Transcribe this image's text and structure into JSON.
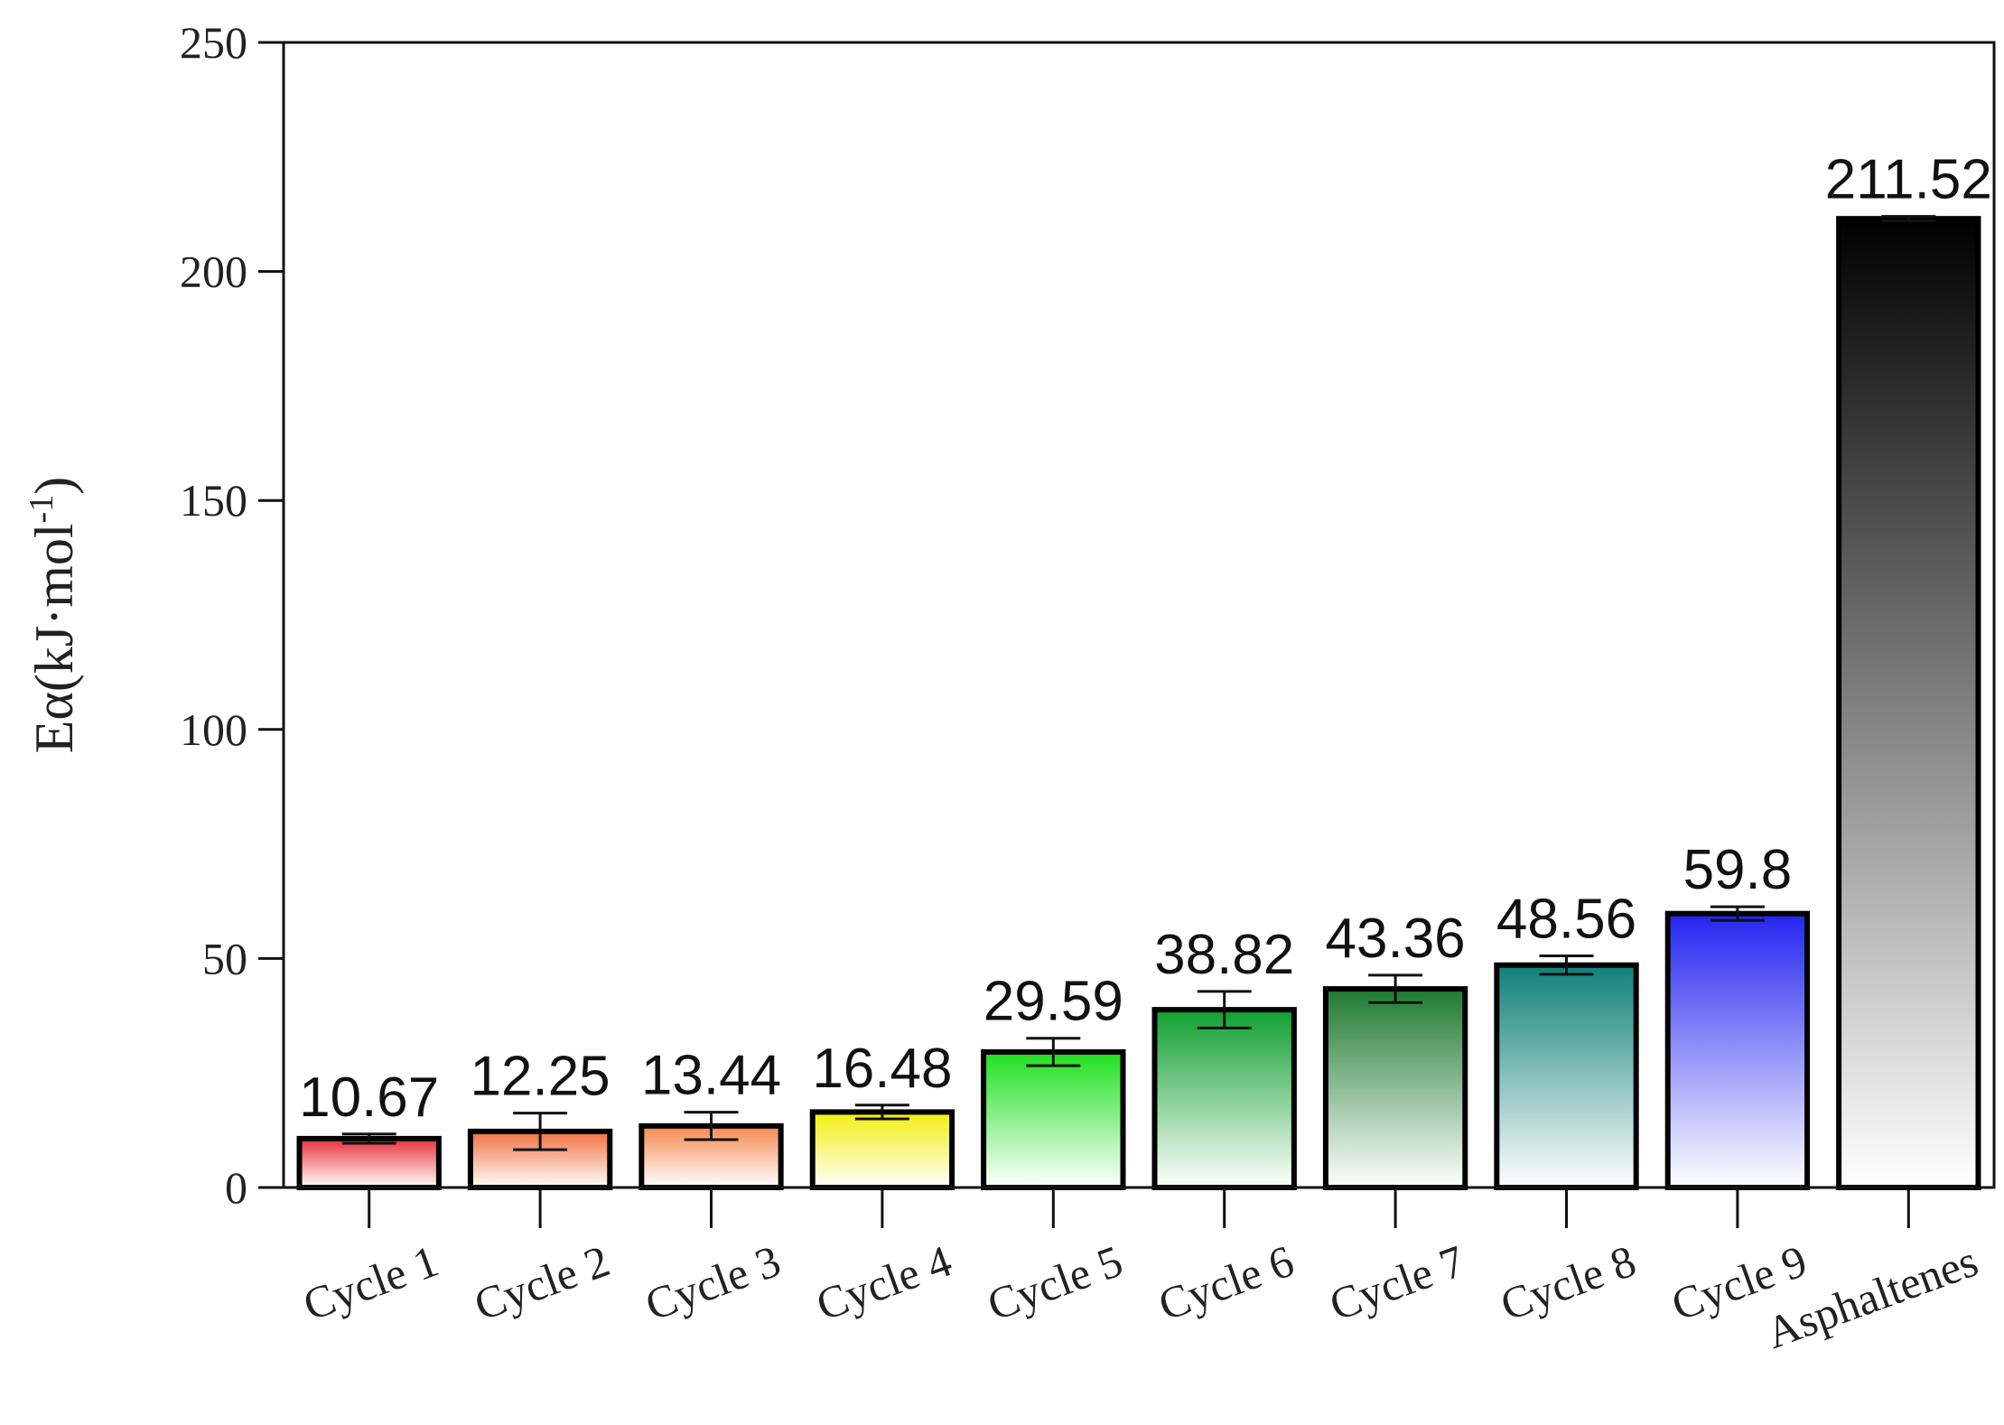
{
  "chart_data": {
    "type": "bar",
    "y_label": "Eα(kJ·mol",
    "y_label_sup": "-1",
    "y_label_end": ")",
    "categories": [
      "Cycle 1",
      "Cycle 2",
      "Cycle 3",
      "Cycle 4",
      "Cycle 5",
      "Cycle 6",
      "Cycle 7",
      "Cycle 8",
      "Cycle 9",
      "Asphaltenes"
    ],
    "values": [
      10.67,
      12.25,
      13.44,
      16.48,
      29.59,
      38.82,
      43.36,
      48.56,
      59.8,
      211.52
    ],
    "errors": [
      1,
      4,
      3,
      1.5,
      3,
      4,
      3,
      2,
      1.5,
      0.5
    ],
    "colors": [
      "#e8303a",
      "#f07040",
      "#f58a50",
      "#f2ee10",
      "#20e020",
      "#10a030",
      "#1f7a30",
      "#108078",
      "#2424f0",
      "#000000"
    ],
    "ylim": [
      0,
      250
    ],
    "yticks": [
      0,
      50,
      100,
      150,
      200,
      250
    ],
    "grid": false
  }
}
